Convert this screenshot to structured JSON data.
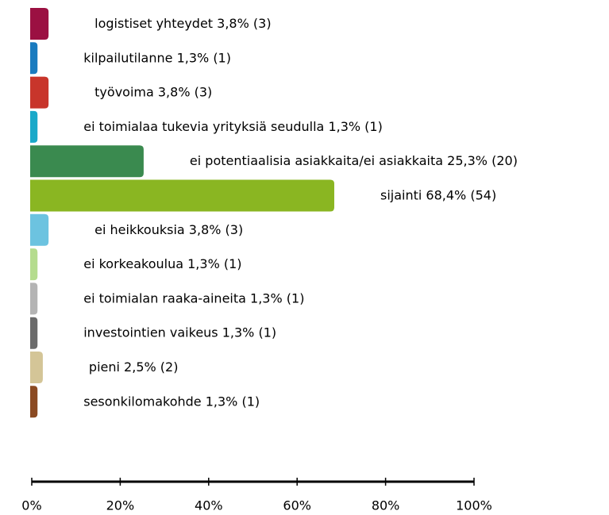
{
  "chart_data": {
    "type": "bar",
    "orientation": "horizontal",
    "categories": [
      "logistiset yhteydet",
      "kilpailutilanne",
      "työvoima",
      "ei toimialaa tukevia yrityksiä seudulla",
      "ei potentiaalisia asiakkaita/ei asiakkaita",
      "sijainti",
      "ei heikkouksia",
      "ei korkeakoulua",
      "ei toimialan raaka-aineita",
      "investointien vaikeus",
      "pieni",
      "sesonkilomakohde"
    ],
    "values": [
      3.8,
      1.3,
      3.8,
      1.3,
      25.3,
      68.4,
      3.8,
      1.3,
      1.3,
      1.3,
      2.5,
      1.3
    ],
    "value_labels": [
      "3,8% (3)",
      "1,3% (1)",
      "3,8% (3)",
      "1,3% (1)",
      "25,3% (20)",
      "68,4% (54)",
      "3,8% (3)",
      "1,3% (1)",
      "1,3% (1)",
      "1,3% (1)",
      "2,5% (2)",
      "1,3% (1)"
    ],
    "colors": [
      "#9b1042",
      "#1a7bbf",
      "#c8352b",
      "#1aa9c9",
      "#3a8a4f",
      "#8ab622",
      "#6cc3e0",
      "#b5dc8e",
      "#b4b4b4",
      "#6b6b6b",
      "#d4c597",
      "#8b4a22"
    ],
    "xlim": [
      0,
      100
    ],
    "xticks": [
      {
        "value": 0,
        "label": "0%"
      },
      {
        "value": 20,
        "label": "20%"
      },
      {
        "value": 40,
        "label": "40%"
      },
      {
        "value": 60,
        "label": "60%"
      },
      {
        "value": 80,
        "label": "80%"
      },
      {
        "value": 100,
        "label": "100%"
      }
    ]
  }
}
